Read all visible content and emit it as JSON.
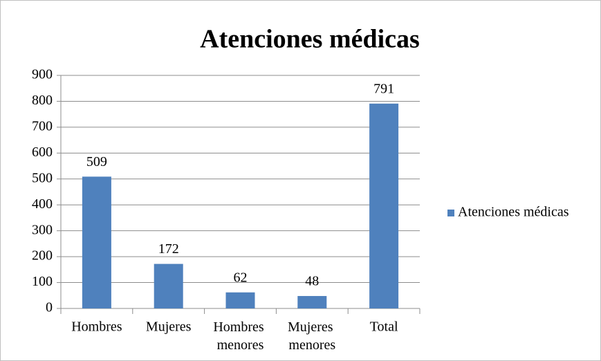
{
  "chart_data": {
    "type": "bar",
    "title": "Atenciones médicas",
    "categories": [
      "Hombres",
      "Mujeres",
      "Hombres menores",
      "Mujeres menores",
      "Total"
    ],
    "series": [
      {
        "name": "Atenciones médicas",
        "color": "#4f81bd",
        "values": [
          509,
          172,
          62,
          48,
          791
        ]
      }
    ],
    "ylim": [
      0,
      900
    ],
    "yticks": [
      0,
      100,
      200,
      300,
      400,
      500,
      600,
      700,
      800,
      900
    ],
    "grid": true,
    "legend": "right"
  }
}
